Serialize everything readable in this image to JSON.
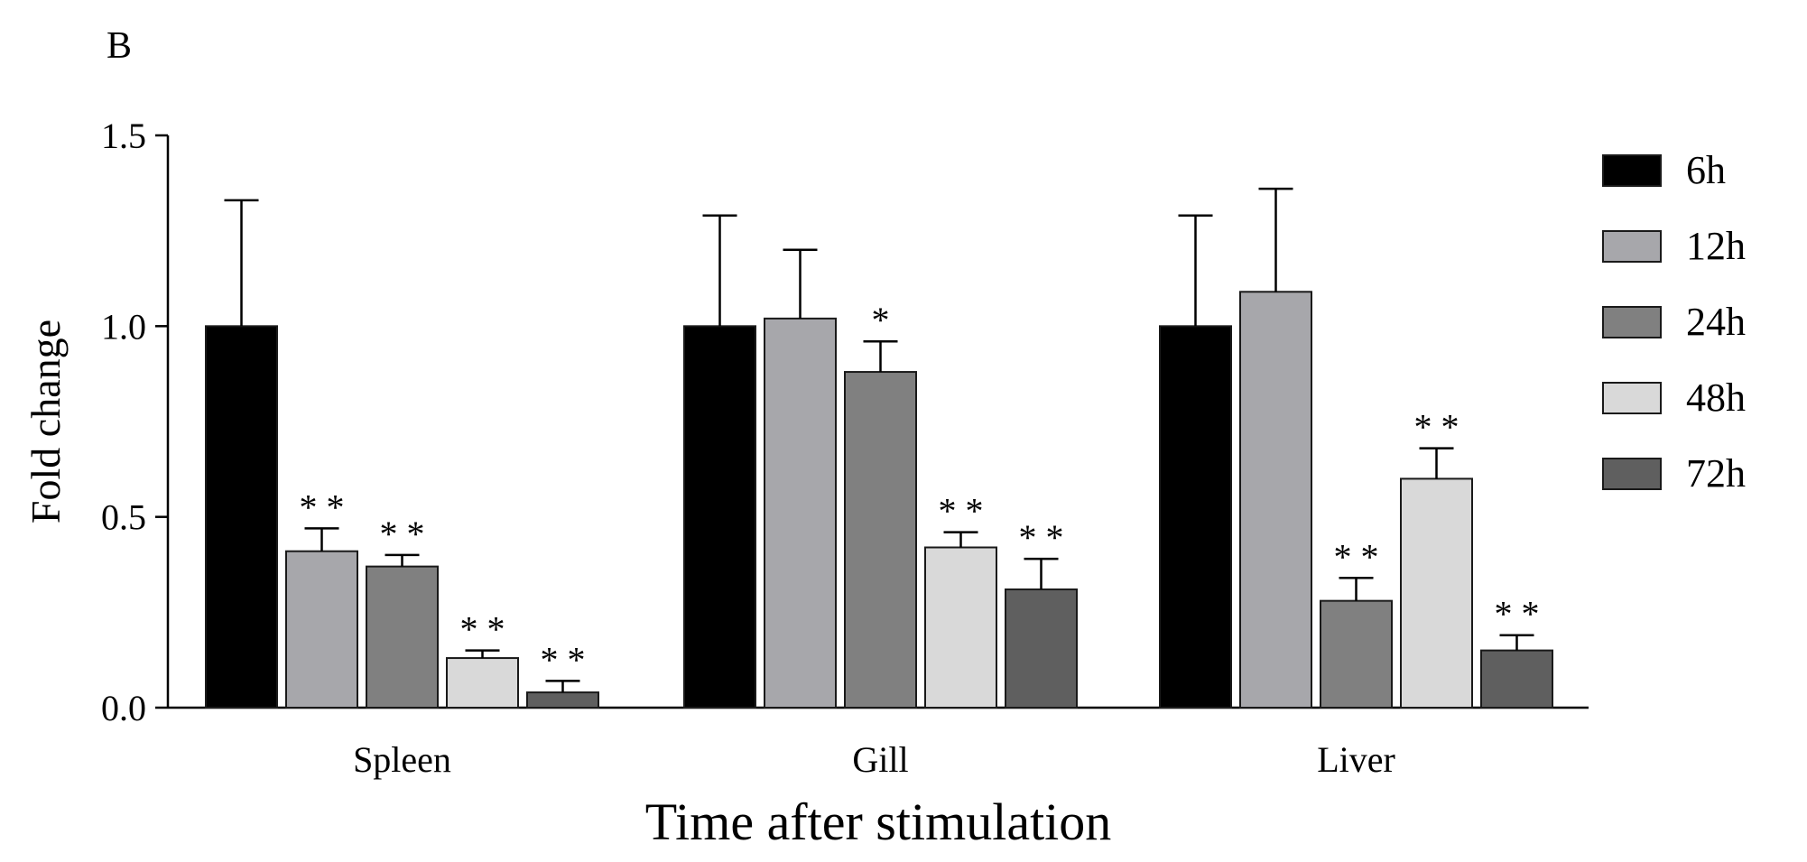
{
  "panel_label": "B",
  "chart_data": {
    "type": "bar",
    "title": "",
    "xlabel": "Time after stimulation",
    "ylabel": "Fold change",
    "ylim": [
      0,
      1.5
    ],
    "yticks": [
      0.0,
      0.5,
      1.0,
      1.5
    ],
    "ytick_labels": [
      "0.0",
      "0.5",
      "1.0",
      "1.5"
    ],
    "categories": [
      "Spleen",
      "Gill",
      "Liver"
    ],
    "legend_position": "right",
    "series": [
      {
        "name": "6h",
        "color": "#000000",
        "values": [
          1.0,
          1.0,
          1.0
        ],
        "errors": [
          0.33,
          0.29,
          0.29
        ],
        "significance": [
          "",
          "",
          ""
        ]
      },
      {
        "name": "12h",
        "color": "#a7a7ab",
        "values": [
          0.41,
          1.02,
          1.09
        ],
        "errors": [
          0.06,
          0.18,
          0.27
        ],
        "significance": [
          "* *",
          "",
          ""
        ]
      },
      {
        "name": "24h",
        "color": "#808080",
        "values": [
          0.37,
          0.88,
          0.28
        ],
        "errors": [
          0.03,
          0.08,
          0.06
        ],
        "significance": [
          "* *",
          "*",
          "* *"
        ]
      },
      {
        "name": "48h",
        "color": "#d9d9d9",
        "values": [
          0.13,
          0.42,
          0.6
        ],
        "errors": [
          0.02,
          0.04,
          0.08
        ],
        "significance": [
          "* *",
          "* *",
          "* *"
        ]
      },
      {
        "name": "72h",
        "color": "#5f5f5f",
        "values": [
          0.04,
          0.31,
          0.15
        ],
        "errors": [
          0.03,
          0.08,
          0.04
        ],
        "significance": [
          "* *",
          "* *",
          "* *"
        ]
      }
    ]
  }
}
